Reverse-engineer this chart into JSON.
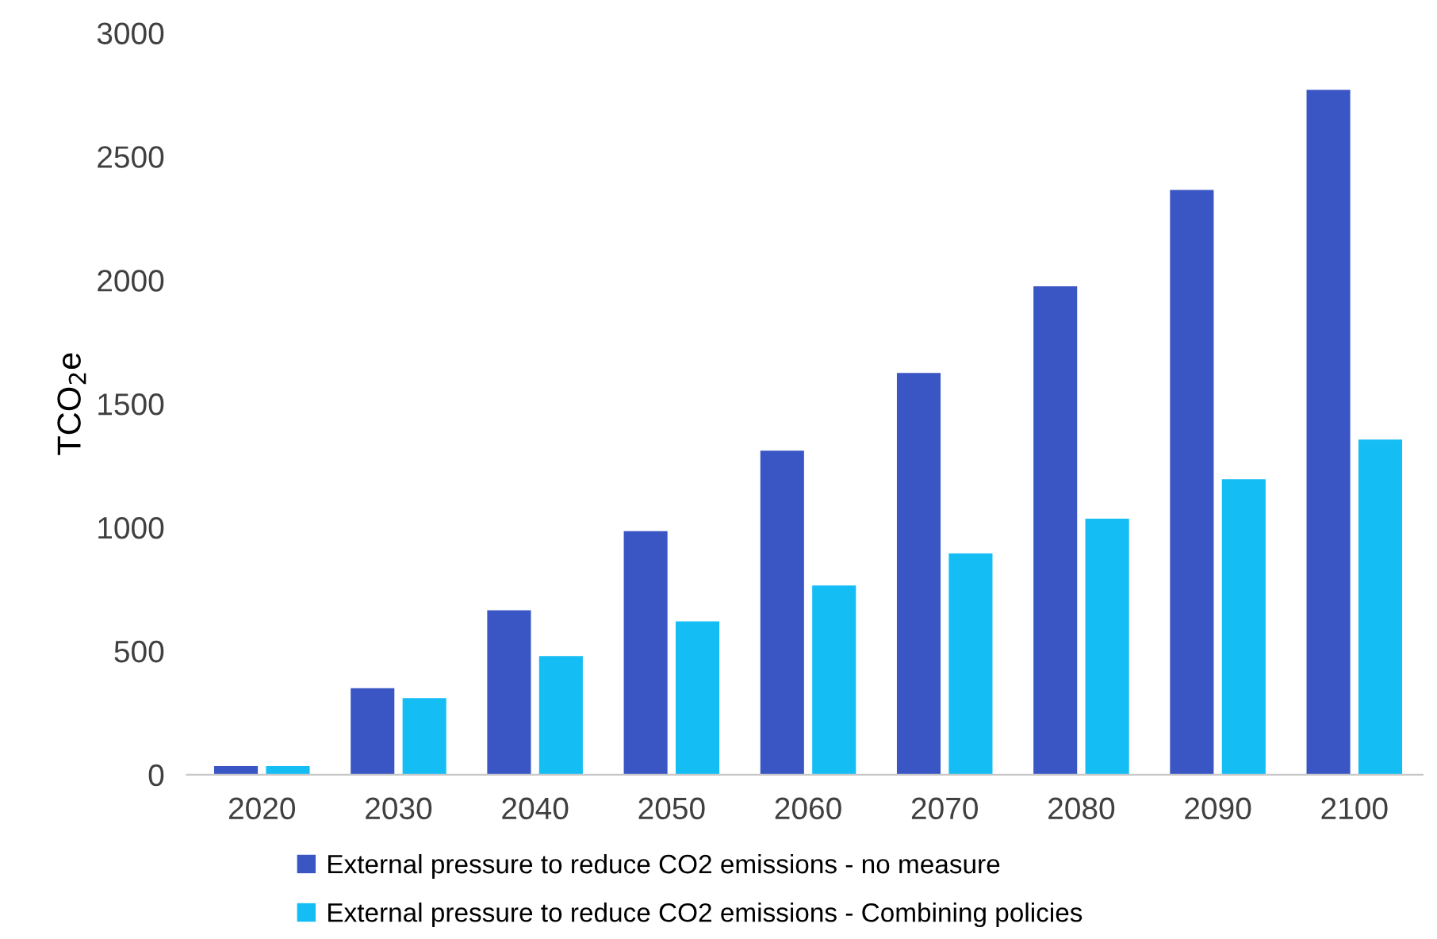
{
  "chart_data": {
    "type": "bar",
    "ylabel": "TCO$_{2}$e",
    "categories": [
      "2020",
      "2030",
      "2040",
      "2050",
      "2060",
      "2070",
      "2080",
      "2090",
      "2100"
    ],
    "series": [
      {
        "name": "External pressure to reduce CO2 emissions - no measure",
        "color": "#3a56c4",
        "values": [
          35,
          350,
          665,
          985,
          1310,
          1625,
          1975,
          2365,
          2770
        ]
      },
      {
        "name": "External pressure to reduce CO2 emissions - Combining policies",
        "color": "#14bdf4",
        "values": [
          35,
          310,
          480,
          620,
          765,
          895,
          1035,
          1195,
          1355
        ]
      }
    ],
    "ylim": [
      0,
      3000
    ],
    "yticks": [
      0,
      500,
      1000,
      1500,
      2000,
      2500,
      3000
    ],
    "grid": false,
    "legend": "bottom"
  }
}
